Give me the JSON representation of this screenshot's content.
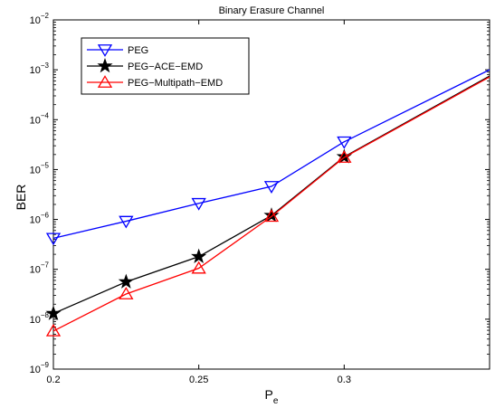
{
  "chart_data": {
    "type": "line",
    "title": "Binary Erasure Channel",
    "xlabel": "P",
    "xlabel_subscript": "e",
    "ylabel": "BER",
    "x_scale": "linear",
    "y_scale": "log",
    "xlim": [
      0.2,
      0.35
    ],
    "ylim": [
      1e-09,
      0.01
    ],
    "x_ticks": [
      0.2,
      0.25,
      0.3
    ],
    "x_tick_labels": [
      "0.2",
      "0.25",
      "0.3"
    ],
    "y_ticks": [
      -9,
      -8,
      -7,
      -6,
      -5,
      -4,
      -3,
      -2
    ],
    "y_tick_base": "10",
    "grid": false,
    "legend_position": "top-left",
    "x": [
      0.2,
      0.225,
      0.25,
      0.275,
      0.3,
      0.35
    ],
    "series": [
      {
        "name": "PEG",
        "color": "#0000ff",
        "marker": "triangle-down",
        "values": [
          4.2e-07,
          9.2e-07,
          2.1e-06,
          4.6e-06,
          3.6e-05,
          0.001
        ]
      },
      {
        "name": "PEG−ACE−EMD",
        "color": "#000000",
        "marker": "star",
        "values": [
          1.3e-08,
          5.6e-08,
          1.8e-07,
          1.2e-06,
          1.8e-05,
          0.00075
        ]
      },
      {
        "name": "PEG−Multipath−EMD",
        "color": "#ff0000",
        "marker": "triangle-up",
        "values": [
          5.8e-09,
          3.2e-08,
          1.05e-07,
          1.15e-06,
          1.75e-05,
          0.00072
        ]
      }
    ]
  }
}
